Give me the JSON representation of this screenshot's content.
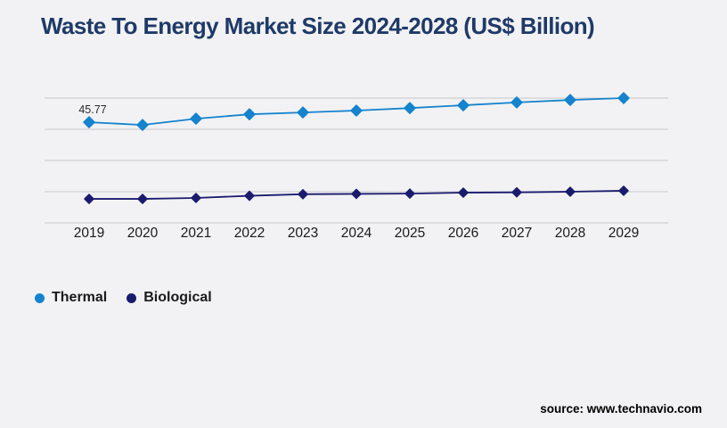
{
  "chart_data": {
    "type": "line",
    "title": "Waste To Energy Market Size 2024-2028 (US$ Billion)",
    "xlabel": "",
    "ylabel": "",
    "x": [
      "2019",
      "2020",
      "2021",
      "2022",
      "2023",
      "2024",
      "2025",
      "2026",
      "2027",
      "2028",
      "2029"
    ],
    "series": [
      {
        "name": "Thermal",
        "color": "#1583cd",
        "marker": "diamond",
        "values": [
          45.77,
          44.9,
          46.9,
          48.3,
          48.9,
          49.5,
          50.3,
          51.2,
          52.1,
          52.9,
          53.5
        ]
      },
      {
        "name": "Biological",
        "color": "#1b1b6e",
        "marker": "diamond",
        "values": [
          21.2,
          21.2,
          21.5,
          22.2,
          22.7,
          22.8,
          22.9,
          23.2,
          23.3,
          23.5,
          23.8
        ]
      }
    ],
    "ylim": [
      13.5,
      53.5
    ],
    "y_axis_labels_visible": false,
    "gridline_count": 5,
    "grid_color": "#c8c8cc",
    "legend_position": "bottom-left",
    "data_labels": [
      {
        "series_index": 0,
        "x_index": 0,
        "text": "45.77"
      }
    ]
  },
  "footer": {
    "source_label": "source: www.technavio.com"
  }
}
